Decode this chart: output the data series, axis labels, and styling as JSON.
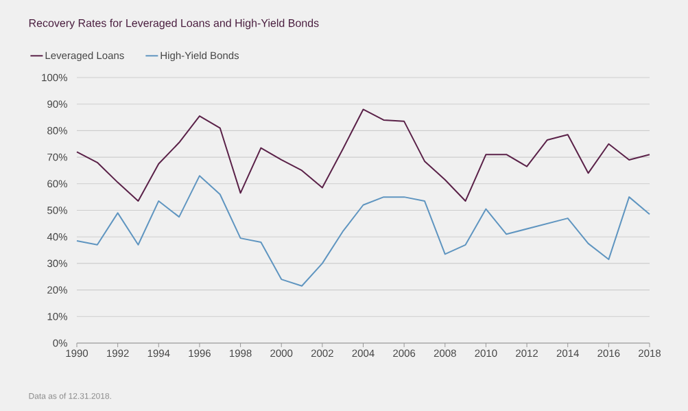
{
  "chart_data": {
    "type": "line",
    "title": "Recovery Rates for Leveraged Loans and High-Yield Bonds",
    "x": [
      1990,
      1991,
      1992,
      1993,
      1994,
      1995,
      1996,
      1997,
      1998,
      1999,
      2000,
      2001,
      2002,
      2003,
      2004,
      2005,
      2006,
      2007,
      2008,
      2009,
      2010,
      2011,
      2012,
      2013,
      2014,
      2015,
      2016,
      2017,
      2018
    ],
    "series": [
      {
        "name": "Leveraged Loans",
        "color": "#5a2148",
        "values": [
          72,
          68,
          60.5,
          53.5,
          67.5,
          75.5,
          85.5,
          81,
          56.5,
          73.5,
          69,
          65,
          58.5,
          73,
          88,
          84,
          83.5,
          68.5,
          61.5,
          53.5,
          71,
          71,
          66.5,
          76.5,
          78.5,
          64,
          75,
          69,
          71
        ]
      },
      {
        "name": "High-Yield Bonds",
        "color": "#5f95c0",
        "values": [
          38.5,
          37,
          49,
          37,
          53.5,
          47.5,
          63,
          56,
          39.5,
          38,
          24,
          21.5,
          30,
          42,
          52,
          55,
          55,
          53.5,
          33.5,
          37,
          50.5,
          41,
          43,
          45,
          47,
          37.5,
          31.5,
          55,
          48.5
        ]
      }
    ],
    "xlim": [
      1990,
      2018
    ],
    "ylim": [
      0,
      100
    ],
    "xticks": [
      1990,
      1992,
      1994,
      1996,
      1998,
      2000,
      2002,
      2004,
      2006,
      2008,
      2010,
      2012,
      2014,
      2016,
      2018
    ],
    "yticks": [
      {
        "value": 0,
        "label": "0%"
      },
      {
        "value": 10,
        "label": "10%"
      },
      {
        "value": 20,
        "label": "20%"
      },
      {
        "value": 30,
        "label": "30%"
      },
      {
        "value": 40,
        "label": "40%"
      },
      {
        "value": 50,
        "label": "50%"
      },
      {
        "value": 60,
        "label": "60%"
      },
      {
        "value": 70,
        "label": "70%"
      },
      {
        "value": 80,
        "label": "80%"
      },
      {
        "value": 90,
        "label": "90%"
      },
      {
        "value": 100,
        "label": "100%"
      }
    ],
    "grid": "y",
    "legend": "top left",
    "line_style": "solid",
    "annotations": [
      "Data as of 12.31.2018."
    ]
  }
}
